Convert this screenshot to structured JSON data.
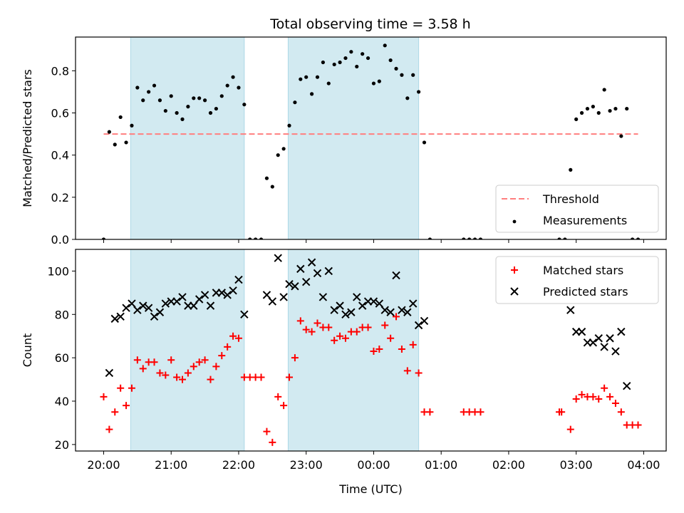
{
  "title": "Total observing time = 3.58 h",
  "colors": {
    "shade": "#add8e6",
    "threshold": "#ff7f7f",
    "measurement": "#000000",
    "matched": "#ff0000",
    "predicted": "#000000"
  },
  "chart_data": [
    {
      "type": "scatter",
      "panel": "top",
      "ylabel": "Matched/Predicted stars",
      "xlim": [
        "19:35",
        "04:20"
      ],
      "ylim": [
        0,
        0.96
      ],
      "yticks": [
        0.0,
        0.2,
        0.4,
        0.6,
        0.8
      ],
      "ytick_labels": [
        "0.0",
        "0.2",
        "0.4",
        "0.6",
        "0.8"
      ],
      "shaded_spans": [
        [
          "20:24",
          "22:05"
        ],
        [
          "22:44",
          "00:40"
        ]
      ],
      "legend": {
        "position": "lower right",
        "entries": [
          "Threshold",
          "Measurements"
        ]
      },
      "series": [
        {
          "name": "Threshold",
          "style": "dashed-line",
          "x": [
            "20:00",
            "03:55"
          ],
          "y": [
            0.5,
            0.5
          ]
        },
        {
          "name": "Measurements",
          "style": "dot",
          "points": [
            [
              "20:00",
              0.0
            ],
            [
              "20:05",
              0.51
            ],
            [
              "20:10",
              0.45
            ],
            [
              "20:15",
              0.58
            ],
            [
              "20:20",
              0.46
            ],
            [
              "20:25",
              0.54
            ],
            [
              "20:30",
              0.72
            ],
            [
              "20:35",
              0.66
            ],
            [
              "20:40",
              0.7
            ],
            [
              "20:45",
              0.73
            ],
            [
              "20:50",
              0.66
            ],
            [
              "20:55",
              0.61
            ],
            [
              "21:00",
              0.68
            ],
            [
              "21:05",
              0.6
            ],
            [
              "21:10",
              0.57
            ],
            [
              "21:15",
              0.63
            ],
            [
              "21:20",
              0.67
            ],
            [
              "21:25",
              0.67
            ],
            [
              "21:30",
              0.66
            ],
            [
              "21:35",
              0.6
            ],
            [
              "21:40",
              0.62
            ],
            [
              "21:45",
              0.68
            ],
            [
              "21:50",
              0.73
            ],
            [
              "21:55",
              0.77
            ],
            [
              "22:00",
              0.72
            ],
            [
              "22:05",
              0.64
            ],
            [
              "22:10",
              0.0
            ],
            [
              "22:15",
              0.0
            ],
            [
              "22:20",
              0.0
            ],
            [
              "22:25",
              0.29
            ],
            [
              "22:30",
              0.25
            ],
            [
              "22:35",
              0.4
            ],
            [
              "22:40",
              0.43
            ],
            [
              "22:45",
              0.54
            ],
            [
              "22:50",
              0.65
            ],
            [
              "22:55",
              0.76
            ],
            [
              "23:00",
              0.77
            ],
            [
              "23:05",
              0.69
            ],
            [
              "23:10",
              0.77
            ],
            [
              "23:15",
              0.84
            ],
            [
              "23:20",
              0.74
            ],
            [
              "23:25",
              0.83
            ],
            [
              "23:30",
              0.84
            ],
            [
              "23:35",
              0.86
            ],
            [
              "23:40",
              0.89
            ],
            [
              "23:45",
              0.82
            ],
            [
              "23:50",
              0.88
            ],
            [
              "23:55",
              0.86
            ],
            [
              "00:00",
              0.74
            ],
            [
              "00:05",
              0.75
            ],
            [
              "00:10",
              0.92
            ],
            [
              "00:15",
              0.85
            ],
            [
              "00:20",
              0.81
            ],
            [
              "00:25",
              0.78
            ],
            [
              "00:30",
              0.67
            ],
            [
              "00:35",
              0.78
            ],
            [
              "00:40",
              0.7
            ],
            [
              "00:45",
              0.46
            ],
            [
              "00:50",
              0.0
            ],
            [
              "01:20",
              0.0
            ],
            [
              "01:25",
              0.0
            ],
            [
              "01:30",
              0.0
            ],
            [
              "01:35",
              0.0
            ],
            [
              "02:45",
              0.0
            ],
            [
              "02:50",
              0.0
            ],
            [
              "02:55",
              0.33
            ],
            [
              "03:00",
              0.57
            ],
            [
              "03:05",
              0.6
            ],
            [
              "03:10",
              0.62
            ],
            [
              "03:15",
              0.63
            ],
            [
              "03:20",
              0.6
            ],
            [
              "03:25",
              0.71
            ],
            [
              "03:30",
              0.61
            ],
            [
              "03:35",
              0.62
            ],
            [
              "03:40",
              0.49
            ],
            [
              "03:45",
              0.62
            ],
            [
              "03:50",
              0.0
            ],
            [
              "03:55",
              0.0
            ]
          ]
        }
      ]
    },
    {
      "type": "scatter",
      "panel": "bottom",
      "xlabel": "Time (UTC)",
      "ylabel": "Count",
      "xlim": [
        "19:35",
        "04:20"
      ],
      "ylim": [
        17,
        110
      ],
      "xticks": [
        "20:00",
        "21:00",
        "22:00",
        "23:00",
        "00:00",
        "01:00",
        "02:00",
        "03:00",
        "04:00"
      ],
      "yticks": [
        20,
        40,
        60,
        80,
        100
      ],
      "ytick_labels": [
        "20",
        "40",
        "60",
        "80",
        "100"
      ],
      "shaded_spans": [
        [
          "20:24",
          "22:05"
        ],
        [
          "22:44",
          "00:40"
        ]
      ],
      "legend": {
        "position": "upper right",
        "entries": [
          "Matched stars",
          "Predicted stars"
        ]
      },
      "series": [
        {
          "name": "Matched stars",
          "style": "plus",
          "points": [
            [
              "20:00",
              42
            ],
            [
              "20:05",
              27
            ],
            [
              "20:10",
              35
            ],
            [
              "20:15",
              46
            ],
            [
              "20:20",
              38
            ],
            [
              "20:25",
              46
            ],
            [
              "20:30",
              59
            ],
            [
              "20:35",
              55
            ],
            [
              "20:40",
              58
            ],
            [
              "20:45",
              58
            ],
            [
              "20:50",
              53
            ],
            [
              "20:55",
              52
            ],
            [
              "21:00",
              59
            ],
            [
              "21:05",
              51
            ],
            [
              "21:10",
              50
            ],
            [
              "21:15",
              53
            ],
            [
              "21:20",
              56
            ],
            [
              "21:25",
              58
            ],
            [
              "21:30",
              59
            ],
            [
              "21:35",
              50
            ],
            [
              "21:40",
              56
            ],
            [
              "21:45",
              61
            ],
            [
              "21:50",
              65
            ],
            [
              "21:55",
              70
            ],
            [
              "22:00",
              69
            ],
            [
              "22:05",
              51
            ],
            [
              "22:10",
              51
            ],
            [
              "22:15",
              51
            ],
            [
              "22:20",
              51
            ],
            [
              "22:25",
              26
            ],
            [
              "22:30",
              21
            ],
            [
              "22:35",
              42
            ],
            [
              "22:40",
              38
            ],
            [
              "22:45",
              51
            ],
            [
              "22:50",
              60
            ],
            [
              "22:55",
              77
            ],
            [
              "23:00",
              73
            ],
            [
              "23:05",
              72
            ],
            [
              "23:10",
              76
            ],
            [
              "23:15",
              74
            ],
            [
              "23:20",
              74
            ],
            [
              "23:25",
              68
            ],
            [
              "23:30",
              70
            ],
            [
              "23:35",
              69
            ],
            [
              "23:40",
              72
            ],
            [
              "23:45",
              72
            ],
            [
              "23:50",
              74
            ],
            [
              "23:55",
              74
            ],
            [
              "00:00",
              63
            ],
            [
              "00:05",
              64
            ],
            [
              "00:10",
              75
            ],
            [
              "00:15",
              69
            ],
            [
              "00:20",
              79
            ],
            [
              "00:25",
              64
            ],
            [
              "00:30",
              54
            ],
            [
              "00:35",
              66
            ],
            [
              "00:40",
              53
            ],
            [
              "00:45",
              35
            ],
            [
              "00:50",
              35
            ],
            [
              "01:20",
              35
            ],
            [
              "01:25",
              35
            ],
            [
              "01:30",
              35
            ],
            [
              "01:35",
              35
            ],
            [
              "02:45",
              35
            ],
            [
              "02:47",
              35
            ],
            [
              "02:55",
              27
            ],
            [
              "03:00",
              41
            ],
            [
              "03:05",
              43
            ],
            [
              "03:10",
              42
            ],
            [
              "03:15",
              42
            ],
            [
              "03:20",
              41
            ],
            [
              "03:25",
              46
            ],
            [
              "03:30",
              42
            ],
            [
              "03:35",
              39
            ],
            [
              "03:40",
              35
            ],
            [
              "03:45",
              29
            ],
            [
              "03:50",
              29
            ],
            [
              "03:55",
              29
            ]
          ]
        },
        {
          "name": "Predicted stars",
          "style": "x",
          "points": [
            [
              "20:05",
              53
            ],
            [
              "20:10",
              78
            ],
            [
              "20:15",
              79
            ],
            [
              "20:20",
              83
            ],
            [
              "20:25",
              85
            ],
            [
              "20:30",
              82
            ],
            [
              "20:35",
              84
            ],
            [
              "20:40",
              83
            ],
            [
              "20:45",
              79
            ],
            [
              "20:50",
              81
            ],
            [
              "20:55",
              85
            ],
            [
              "21:00",
              86
            ],
            [
              "21:05",
              86
            ],
            [
              "21:10",
              88
            ],
            [
              "21:15",
              84
            ],
            [
              "21:20",
              84
            ],
            [
              "21:25",
              87
            ],
            [
              "21:30",
              89
            ],
            [
              "21:35",
              84
            ],
            [
              "21:40",
              90
            ],
            [
              "21:45",
              90
            ],
            [
              "21:50",
              89
            ],
            [
              "21:55",
              91
            ],
            [
              "22:00",
              96
            ],
            [
              "22:05",
              80
            ],
            [
              "22:25",
              89
            ],
            [
              "22:30",
              86
            ],
            [
              "22:35",
              106
            ],
            [
              "22:40",
              88
            ],
            [
              "22:45",
              94
            ],
            [
              "22:50",
              93
            ],
            [
              "22:55",
              101
            ],
            [
              "23:00",
              95
            ],
            [
              "23:05",
              104
            ],
            [
              "23:10",
              99
            ],
            [
              "23:15",
              88
            ],
            [
              "23:20",
              100
            ],
            [
              "23:25",
              82
            ],
            [
              "23:30",
              84
            ],
            [
              "23:35",
              80
            ],
            [
              "23:40",
              81
            ],
            [
              "23:45",
              88
            ],
            [
              "23:50",
              84
            ],
            [
              "23:55",
              86
            ],
            [
              "00:00",
              86
            ],
            [
              "00:05",
              85
            ],
            [
              "00:10",
              82
            ],
            [
              "00:15",
              81
            ],
            [
              "00:20",
              98
            ],
            [
              "00:25",
              82
            ],
            [
              "00:30",
              81
            ],
            [
              "00:35",
              85
            ],
            [
              "00:40",
              75
            ],
            [
              "00:45",
              77
            ],
            [
              "02:55",
              82
            ],
            [
              "03:00",
              72
            ],
            [
              "03:05",
              72
            ],
            [
              "03:10",
              67
            ],
            [
              "03:15",
              67
            ],
            [
              "03:20",
              69
            ],
            [
              "03:25",
              65
            ],
            [
              "03:30",
              69
            ],
            [
              "03:35",
              63
            ],
            [
              "03:40",
              72
            ],
            [
              "03:45",
              47
            ]
          ]
        }
      ]
    }
  ]
}
